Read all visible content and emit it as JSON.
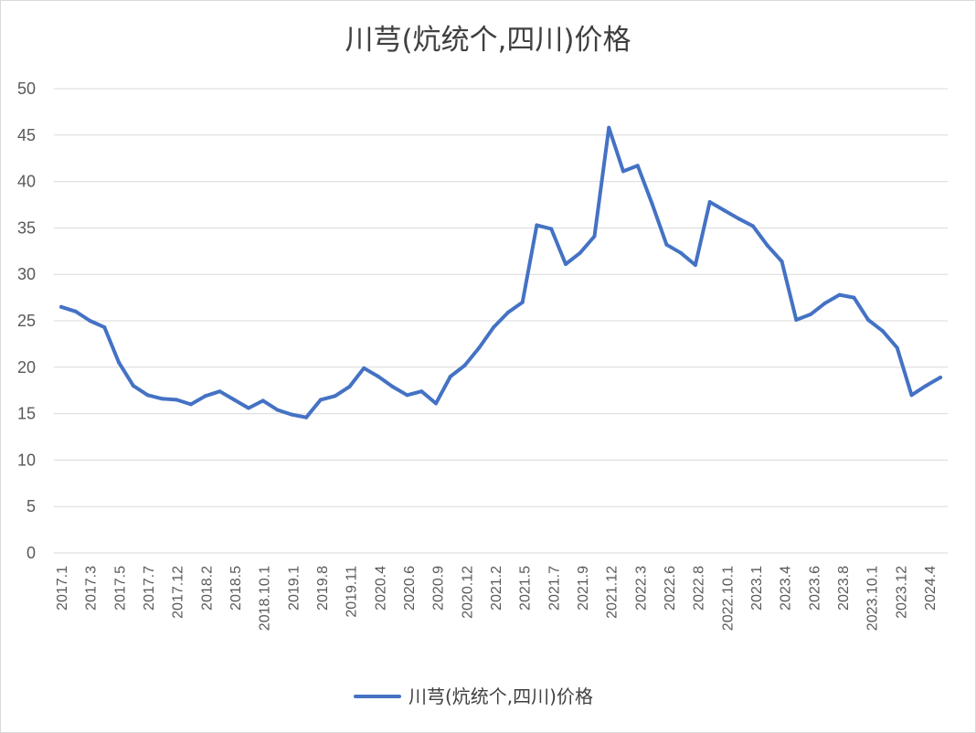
{
  "chart_data": {
    "type": "line",
    "title": "川芎(炕统个,四川)价格",
    "xlabel": "",
    "ylabel": "",
    "ylim": [
      0,
      50
    ],
    "yticks": [
      "0",
      "5",
      "10",
      "15",
      "20",
      "25",
      "30",
      "35",
      "40",
      "45",
      "50"
    ],
    "grid": true,
    "legend_position": "bottom",
    "series_color": "#4472C4",
    "grid_color": "#d9d9d9",
    "x_tick_labels": [
      "2017.1",
      "2017.3",
      "2017.5",
      "2017.7",
      "2017.12",
      "2018.2",
      "2018.5",
      "2018.10.1",
      "2019.1",
      "2019.8",
      "2019.11",
      "2020.4",
      "2020.6",
      "2020.9",
      "2020.12",
      "2021.2",
      "2021.5",
      "2021.7",
      "2021.9",
      "2021.12",
      "2022.3",
      "2022.6",
      "2022.8",
      "2022.10.1",
      "2023.1",
      "2023.4",
      "2023.6",
      "2023.8",
      "2023.10.1",
      "2023.12",
      "2024.4"
    ],
    "series": [
      {
        "name": "川芎(炕统个,四川)价格",
        "values": [
          26.5,
          26.0,
          25.0,
          24.3,
          20.5,
          18.0,
          17.0,
          16.6,
          16.5,
          16.0,
          16.9,
          17.4,
          16.5,
          15.6,
          16.4,
          15.4,
          14.9,
          14.6,
          16.5,
          16.9,
          17.9,
          19.9,
          19.0,
          17.9,
          17.0,
          17.4,
          16.1,
          19.0,
          20.2,
          22.1,
          24.3,
          25.9,
          27.0,
          35.3,
          34.9,
          31.1,
          32.3,
          34.1,
          45.8,
          41.1,
          41.7,
          37.6,
          33.2,
          32.3,
          31.0,
          37.8,
          36.9,
          36.0,
          35.2,
          33.1,
          31.4,
          25.1,
          25.7,
          26.9,
          27.8,
          27.5,
          25.1,
          23.9,
          22.1,
          17.0,
          18.0,
          18.9
        ]
      }
    ]
  }
}
